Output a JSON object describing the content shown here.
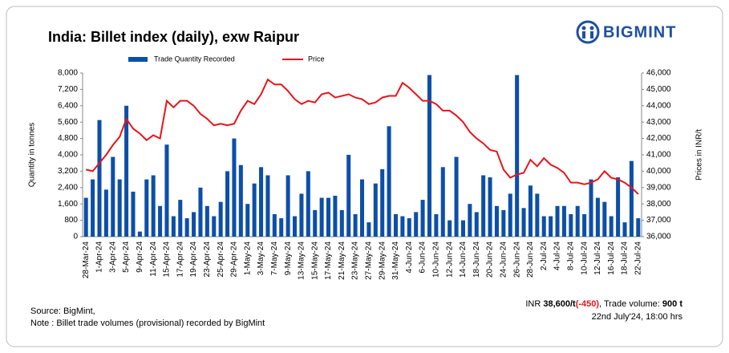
{
  "chart_data": {
    "type": "bar",
    "title": "India: Billet index (daily), exw Raipur",
    "logo": "BIGMINT",
    "ylabel": "Quantity in tonnes",
    "y2label": "Prices in INR/t",
    "categories": [
      "28-Mar-24",
      null,
      "1-Apr-24",
      null,
      "3-Apr-24",
      null,
      "5-Apr-24",
      null,
      "9-Apr-24",
      null,
      "11-Apr-24",
      null,
      "15-Apr-24",
      null,
      "17-Apr-24",
      null,
      "19-Apr-24",
      null,
      "23-Apr-24",
      null,
      "25-Apr-24",
      null,
      "29-Apr-24",
      null,
      "1-May-24",
      null,
      "3-May-24",
      null,
      "7-May-24",
      null,
      "9-May-24",
      null,
      "13-May-24",
      null,
      "15-May-24",
      null,
      "17-May-24",
      null,
      "21-May-24",
      null,
      "23-May-24",
      null,
      "27-May-24",
      null,
      "29-May-24",
      null,
      "31-May-24",
      null,
      "4-Jun-24",
      null,
      "6-Jun-24",
      null,
      "10-Jun-24",
      null,
      "12-Jun-24",
      null,
      "14-Jun-24",
      null,
      "18-Jun-24",
      null,
      "20-Jun-24",
      null,
      "24-Jun-24",
      null,
      "26-Jun-24",
      null,
      "28-Jun-24",
      null,
      "2-Jul-24",
      null,
      "4-Jul-24",
      null,
      "8-Jul-24",
      null,
      "10-Jul-24",
      null,
      "12-Jul-24",
      null,
      "16-Jul-24",
      null,
      "18-Jul-24",
      null,
      "22-Jul-24"
    ],
    "series": [
      {
        "name": "Trade Quantity Recorded",
        "type": "bar",
        "color": "#0d4fa8",
        "values": [
          1900,
          2800,
          5700,
          2300,
          3900,
          2800,
          6400,
          2200,
          250,
          2800,
          3000,
          1500,
          4500,
          1000,
          1800,
          900,
          1200,
          2400,
          1500,
          1000,
          1700,
          3200,
          4800,
          3500,
          1600,
          2600,
          3400,
          3000,
          1100,
          900,
          3000,
          1000,
          2100,
          3200,
          1300,
          1900,
          1900,
          2000,
          1300,
          4000,
          1100,
          2800,
          700,
          2600,
          3300,
          5400,
          1100,
          1000,
          900,
          1200,
          1800,
          7900,
          1100,
          3400,
          800,
          3900,
          800,
          1600,
          1200,
          3000,
          2900,
          1500,
          1300,
          2100,
          7900,
          1400,
          2500,
          2100,
          1000,
          1000,
          1500,
          1500,
          1100,
          1500,
          1100,
          2800,
          1900,
          1700,
          1000,
          2900,
          700,
          3700,
          900
        ]
      },
      {
        "name": "Price",
        "type": "line",
        "axis": "y2",
        "color": "#e8141b",
        "values": [
          40100,
          40000,
          40500,
          41000,
          41600,
          42100,
          43200,
          42600,
          42300,
          41900,
          42200,
          42000,
          44300,
          43900,
          44300,
          44300,
          44000,
          43500,
          43200,
          42800,
          42900,
          42800,
          42900,
          43700,
          44300,
          44100,
          44700,
          45600,
          45300,
          45300,
          44900,
          44400,
          44100,
          44300,
          44200,
          44700,
          44800,
          44500,
          44600,
          44700,
          44500,
          44400,
          44100,
          44200,
          44500,
          44600,
          44600,
          45400,
          45100,
          44700,
          44300,
          44300,
          44100,
          43700,
          43700,
          43400,
          43000,
          42400,
          42000,
          41700,
          41300,
          41200,
          40100,
          39600,
          39800,
          39900,
          40700,
          40300,
          40800,
          40400,
          40200,
          39900,
          39300,
          39300,
          39200,
          39300,
          39500,
          40000,
          39600,
          39500,
          39300,
          39000,
          38600
        ]
      }
    ],
    "ylim": [
      0,
      8000
    ],
    "yticks": [
      0,
      800,
      {
        "value": 1600,
        "label": "1,600"
      },
      {
        "value": 2400,
        "label": "2,400"
      },
      {
        "value": 3200,
        "label": "3,200"
      },
      {
        "value": 4000,
        "label": "4,000"
      },
      {
        "value": 4800,
        "label": "4,800"
      },
      {
        "value": 5600,
        "label": "5,600"
      },
      {
        "value": 6400,
        "label": "6,400"
      },
      {
        "value": 7200,
        "label": "7,200"
      },
      {
        "value": 8000,
        "label": "8,000"
      }
    ],
    "y2lim": [
      36000,
      46000
    ],
    "y2ticks": [
      {
        "value": 36000,
        "label": "36,000"
      },
      {
        "value": 37000,
        "label": "37,000"
      },
      {
        "value": 38000,
        "label": "38,000"
      },
      {
        "value": 39000,
        "label": "39,000"
      },
      {
        "value": 40000,
        "label": "40,000"
      },
      {
        "value": 41000,
        "label": "41,000"
      },
      {
        "value": 42000,
        "label": "42,000"
      },
      {
        "value": 43000,
        "label": "43,000"
      },
      {
        "value": 44000,
        "label": "44,000"
      },
      {
        "value": 45000,
        "label": "45,000"
      },
      {
        "value": 46000,
        "label": "46,000"
      }
    ],
    "legend": "top",
    "source": "Source: BigMint,",
    "note": "Note : Billet trade volumes (provisional) recorded by BigMint",
    "summary": {
      "currency": "INR ",
      "price": "38,600/t",
      "change": "(-450)",
      "volume_text": ", Trade volume: ",
      "volume": "900 t",
      "timestamp": "22nd July'24, 18:00 hrs"
    }
  }
}
